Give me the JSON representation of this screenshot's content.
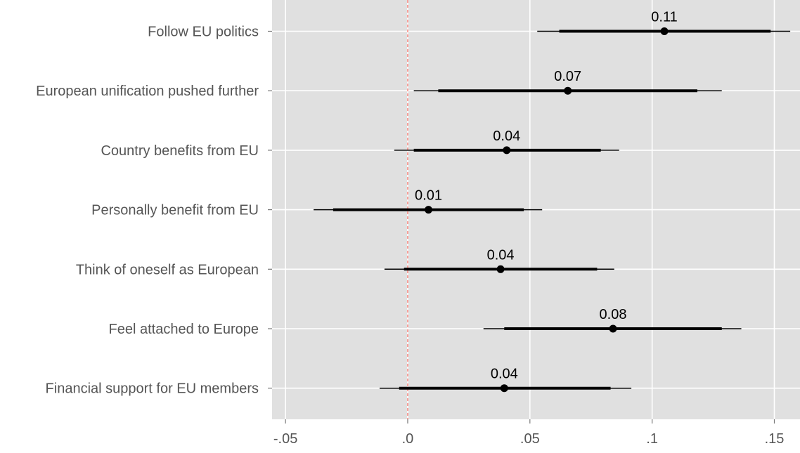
{
  "chart_data": {
    "type": "coefficient-plot",
    "title": "",
    "xlabel": "",
    "ylabel": "",
    "categories": [
      "Follow EU politics",
      "European unification pushed further",
      "Country benefits from EU",
      "Personally benefit from EU",
      "Think of oneself as European",
      "Feel attached to Europe",
      "Financial support for EU members"
    ],
    "estimates": [
      0.105,
      0.0655,
      0.0405,
      0.0085,
      0.038,
      0.084,
      0.0395
    ],
    "value_labels": [
      "0.11",
      "0.07",
      "0.04",
      "0.01",
      "0.04",
      "0.08",
      "0.04"
    ],
    "ci_inner": [
      [
        0.062,
        0.1485
      ],
      [
        0.0125,
        0.1185
      ],
      [
        0.0025,
        0.079
      ],
      [
        -0.0305,
        0.0475
      ],
      [
        -0.0015,
        0.0775
      ],
      [
        0.0395,
        0.1285
      ],
      [
        -0.0035,
        0.083
      ]
    ],
    "ci_outer": [
      [
        0.053,
        0.1565
      ],
      [
        0.0025,
        0.1285
      ],
      [
        -0.0055,
        0.0865
      ],
      [
        -0.0385,
        0.055
      ],
      [
        -0.0095,
        0.0845
      ],
      [
        0.031,
        0.1365
      ],
      [
        -0.0115,
        0.0915
      ]
    ],
    "xlim": [
      -0.0555,
      0.1605
    ],
    "x_ticks": [
      -0.05,
      0,
      0.05,
      0.1,
      0.15
    ],
    "x_tick_labels": [
      "-.05",
      ".0",
      ".05",
      ".1",
      ".15"
    ],
    "reference_line": {
      "x": 0,
      "style": "dashed",
      "color": "#f8766d"
    },
    "grid": true,
    "legend": "none",
    "colors": {
      "panel_background": "#e0e0e0",
      "grid": "#ffffff",
      "marks": "#000000",
      "category_labels": "#555555",
      "tick_labels": "#555555"
    }
  }
}
